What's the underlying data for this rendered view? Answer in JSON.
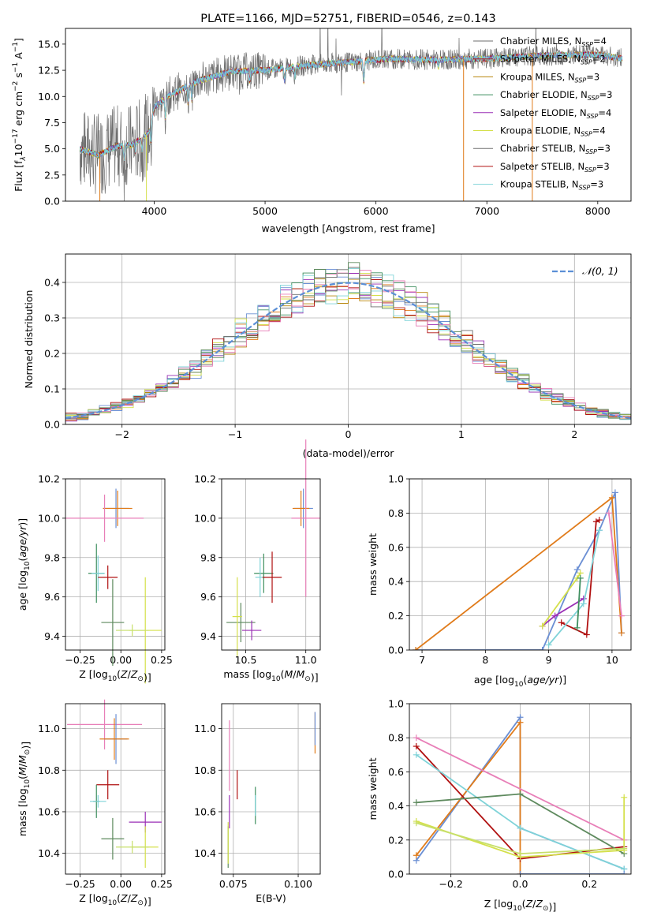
{
  "colors": {
    "chabrier_miles": "#6b8fd4",
    "salpeter_miles": "#e07b1a",
    "kroupa_miles": "#b8860b",
    "chabrier_elodie": "#3f8f5f",
    "salpeter_elodie": "#9a2fb5",
    "kroupa_elodie": "#d4e04a",
    "chabrier_stelib": "#6e6e6e",
    "salpeter_stelib": "#b01010",
    "kroupa_stelib": "#7fd3d8",
    "pink": "#e87fb8",
    "sage": "#5e8a5e",
    "lime": "#c7df6a",
    "normal": "#5b8fd6"
  },
  "chart_data": [
    {
      "id": "spectrum",
      "type": "line",
      "title": "PLATE=1166, MJD=52751, FIBERID=0546, z=0.143",
      "xlabel": "wavelength [Angstrom, rest frame]",
      "ylabel": "Flux [f",
      "xlim": [
        3200,
        8300
      ],
      "ylim": [
        0,
        16.5
      ],
      "xticks": [
        "4000",
        "5000",
        "6000",
        "7000",
        "8000"
      ],
      "xtick_values": [
        4000,
        5000,
        6000,
        7000,
        8000
      ],
      "yticks": [
        "0.0",
        "2.5",
        "5.0",
        "7.5",
        "10.0",
        "12.5",
        "15.0"
      ],
      "ytick_values": [
        0,
        2.5,
        5,
        7.5,
        10,
        12.5,
        15
      ],
      "grid": false,
      "legend_position": "top-right",
      "legend": [
        {
          "name": "Chabrier MILES, N",
          "sub": "SSP",
          "suffix": "=4"
        },
        {
          "name": "Salpeter MILES, N",
          "sub": "SSP",
          "suffix": "=2"
        },
        {
          "name": "Kroupa MILES, N",
          "sub": "SSP",
          "suffix": "=3"
        },
        {
          "name": "Chabrier ELODIE, N",
          "sub": "SSP",
          "suffix": "=3"
        },
        {
          "name": "Salpeter ELODIE, N",
          "sub": "SSP",
          "suffix": "=4"
        },
        {
          "name": "Kroupa ELODIE, N",
          "sub": "SSP",
          "suffix": "=4"
        },
        {
          "name": "Chabrier STELIB, N",
          "sub": "SSP",
          "suffix": "=3"
        },
        {
          "name": "Salpeter STELIB, N",
          "sub": "SSP",
          "suffix": "=3"
        },
        {
          "name": "Kroupa STELIB, N",
          "sub": "SSP",
          "suffix": "=3"
        }
      ],
      "continuum_nodes": [
        [
          3330,
          5.0
        ],
        [
          3500,
          4.4
        ],
        [
          3650,
          5.2
        ],
        [
          3800,
          5.4
        ],
        [
          3950,
          6.5
        ],
        [
          4000,
          9.0
        ],
        [
          4150,
          10.2
        ],
        [
          4400,
          11.5
        ],
        [
          4700,
          12.4
        ],
        [
          5000,
          12.5
        ],
        [
          5400,
          13.0
        ],
        [
          5800,
          13.3
        ],
        [
          6100,
          13.6
        ],
        [
          6500,
          13.5
        ],
        [
          7000,
          13.6
        ],
        [
          7500,
          13.9
        ],
        [
          8000,
          14.0
        ],
        [
          8220,
          13.6
        ]
      ]
    },
    {
      "id": "residuals",
      "type": "histogram",
      "xlabel": "(data-model)/error",
      "ylabel": "Normed distribution",
      "xlim": [
        -2.5,
        2.5
      ],
      "ylim": [
        0,
        0.48
      ],
      "xticks": [
        "−2",
        "−1",
        "0",
        "1",
        "2"
      ],
      "xtick_values": [
        -2,
        -1,
        0,
        1,
        2
      ],
      "yticks": [
        "0.0",
        "0.1",
        "0.2",
        "0.3",
        "0.4"
      ],
      "ytick_values": [
        0,
        0.1,
        0.2,
        0.3,
        0.4
      ],
      "grid": true,
      "legend_position": "top-right",
      "legend": [
        {
          "name": "𝒩(0, 1)"
        }
      ]
    },
    {
      "id": "age-vs-z",
      "type": "errorbar",
      "xlabel": "Z [log",
      "ylabel": "age  [log",
      "xlim": [
        -0.34,
        0.27
      ],
      "ylim": [
        9.33,
        10.2
      ],
      "xticks": [
        "−0.25",
        "0.00",
        "0.25"
      ],
      "xtick_values": [
        -0.25,
        0,
        0.25
      ],
      "yticks": [
        "9.4",
        "9.6",
        "9.8",
        "10.0",
        "10.2"
      ],
      "ytick_values": [
        9.4,
        9.6,
        9.8,
        10.0,
        10.2
      ],
      "grid": true,
      "points": [
        {
          "c": "chabrier_miles",
          "x": -0.03,
          "y": 10.05,
          "xe": 0.08,
          "ye": 0.1
        },
        {
          "c": "salpeter_miles",
          "x": -0.02,
          "y": 10.05,
          "xe": 0.09,
          "ye": 0.09
        },
        {
          "c": "pink",
          "x": -0.1,
          "y": 10.0,
          "xe": 0.24,
          "ye": 0.12
        },
        {
          "c": "chabrier_elodie",
          "x": -0.15,
          "y": 9.72,
          "xe": 0.05,
          "ye": 0.15
        },
        {
          "c": "kroupa_stelib",
          "x": -0.14,
          "y": 9.72,
          "xe": 0.04,
          "ye": 0.09
        },
        {
          "c": "salpeter_stelib",
          "x": -0.08,
          "y": 9.7,
          "xe": 0.06,
          "ye": 0.06
        },
        {
          "c": "sage",
          "x": -0.05,
          "y": 9.47,
          "xe": 0.07,
          "ye": 0.22
        },
        {
          "c": "kroupa_elodie",
          "x": 0.15,
          "y": 9.43,
          "xe": 0.1,
          "ye": 0.27
        },
        {
          "c": "lime",
          "x": 0.07,
          "y": 9.43,
          "xe": 0.1,
          "ye": 0.03
        }
      ]
    },
    {
      "id": "age-vs-mass",
      "type": "errorbar",
      "xlabel": "mass [log",
      "xlim": [
        10.3,
        11.12
      ],
      "ylim": [
        9.33,
        10.2
      ],
      "xticks": [
        "10.5",
        "11.0"
      ],
      "xtick_values": [
        10.5,
        11.0
      ],
      "yticks": [
        "9.4",
        "9.6",
        "9.8",
        "10.0",
        "10.2"
      ],
      "ytick_values": [
        9.4,
        9.6,
        9.8,
        10.0,
        10.2
      ],
      "grid": true,
      "points": [
        {
          "c": "chabrier_miles",
          "x": 10.98,
          "y": 10.05,
          "xe": 0.08,
          "ye": 0.1
        },
        {
          "c": "salpeter_miles",
          "x": 10.96,
          "y": 10.05,
          "xe": 0.07,
          "ye": 0.09
        },
        {
          "c": "pink",
          "x": 11.0,
          "y": 10.0,
          "xe": 0.12,
          "ye": 0.4
        },
        {
          "c": "chabrier_elodie",
          "x": 10.65,
          "y": 9.72,
          "xe": 0.08,
          "ye": 0.1
        },
        {
          "c": "kroupa_stelib",
          "x": 10.62,
          "y": 9.7,
          "xe": 0.04,
          "ye": 0.1
        },
        {
          "c": "salpeter_stelib",
          "x": 10.72,
          "y": 9.7,
          "xe": 0.08,
          "ye": 0.13
        },
        {
          "c": "sage",
          "x": 10.46,
          "y": 9.47,
          "xe": 0.12,
          "ye": 0.1
        },
        {
          "c": "salpeter_elodie",
          "x": 10.55,
          "y": 9.43,
          "xe": 0.08,
          "ye": 0.05
        },
        {
          "c": "kroupa_elodie",
          "x": 10.43,
          "y": 9.5,
          "xe": 0.04,
          "ye": 0.2
        }
      ]
    },
    {
      "id": "weight-vs-age",
      "type": "line",
      "xlabel": "age  [log",
      "ylabel": "mass weight",
      "xlim": [
        6.8,
        10.3
      ],
      "ylim": [
        0,
        1.0
      ],
      "xticks": [
        "7",
        "8",
        "9",
        "10"
      ],
      "xtick_values": [
        7,
        8,
        9,
        10
      ],
      "yticks": [
        "0.0",
        "0.2",
        "0.4",
        "0.6",
        "0.8",
        "1.0"
      ],
      "ytick_values": [
        0,
        0.2,
        0.4,
        0.6,
        0.8,
        1.0
      ],
      "grid": true,
      "series": [
        {
          "c": "chabrier_miles",
          "x": [
            6.9,
            8.9,
            9.45,
            9.8,
            10.05,
            10.15
          ],
          "y": [
            0.0,
            0.0,
            0.47,
            0.7,
            0.92,
            0.1
          ]
        },
        {
          "c": "salpeter_miles",
          "x": [
            6.9,
            10.0,
            10.15
          ],
          "y": [
            0.0,
            0.89,
            0.1
          ]
        },
        {
          "c": "salpeter_elodie",
          "x": [
            8.9,
            9.1,
            9.55
          ],
          "y": [
            0.14,
            0.2,
            0.3
          ]
        },
        {
          "c": "kroupa_elodie",
          "x": [
            8.9,
            9.45,
            9.5
          ],
          "y": [
            0.14,
            0.42,
            0.45
          ]
        },
        {
          "c": "salpeter_stelib",
          "x": [
            9.2,
            9.6,
            9.75,
            9.8
          ],
          "y": [
            0.16,
            0.09,
            0.75,
            0.76
          ]
        },
        {
          "c": "pink",
          "x": [
            9.95,
            10.15
          ],
          "y": [
            0.8,
            0.2
          ]
        },
        {
          "c": "kroupa_stelib",
          "x": [
            9.0,
            9.55,
            9.8
          ],
          "y": [
            0.03,
            0.27,
            0.7
          ]
        },
        {
          "c": "chabrier_elodie",
          "x": [
            9.45,
            9.5
          ],
          "y": [
            0.13,
            0.42
          ]
        }
      ]
    },
    {
      "id": "mass-vs-z",
      "type": "errorbar",
      "xlabel": "Z [log",
      "ylabel": "mass [log",
      "xlim": [
        -0.34,
        0.27
      ],
      "ylim": [
        10.3,
        11.12
      ],
      "xticks": [
        "−0.25",
        "0.00",
        "0.25"
      ],
      "xtick_values": [
        -0.25,
        0,
        0.25
      ],
      "yticks": [
        "10.4",
        "10.6",
        "10.8",
        "11.0"
      ],
      "ytick_values": [
        10.4,
        10.6,
        10.8,
        11.0
      ],
      "grid": true,
      "points": [
        {
          "c": "pink",
          "x": -0.1,
          "y": 11.02,
          "xe": 0.23,
          "ye": 0.12
        },
        {
          "c": "chabrier_miles",
          "x": -0.03,
          "y": 10.95,
          "xe": 0.07,
          "ye": 0.12
        },
        {
          "c": "salpeter_miles",
          "x": -0.04,
          "y": 10.95,
          "xe": 0.09,
          "ye": 0.1
        },
        {
          "c": "salpeter_stelib",
          "x": -0.08,
          "y": 10.73,
          "xe": 0.07,
          "ye": 0.07
        },
        {
          "c": "chabrier_elodie",
          "x": -0.15,
          "y": 10.65,
          "xe": 0.02,
          "ye": 0.08
        },
        {
          "c": "kroupa_stelib",
          "x": -0.14,
          "y": 10.65,
          "xe": 0.05,
          "ye": 0.03
        },
        {
          "c": "salpeter_elodie",
          "x": 0.15,
          "y": 10.55,
          "xe": 0.1,
          "ye": 0.05
        },
        {
          "c": "sage",
          "x": -0.05,
          "y": 10.47,
          "xe": 0.07,
          "ye": 0.1
        },
        {
          "c": "kroupa_elodie",
          "x": 0.15,
          "y": 10.43,
          "xe": 0.08,
          "ye": 0.1
        },
        {
          "c": "lime",
          "x": 0.07,
          "y": 10.43,
          "xe": 0.1,
          "ye": 0.03
        }
      ]
    },
    {
      "id": "mass-vs-ebv",
      "type": "errorbar",
      "xlabel": "E(B-V)",
      "xlim": [
        0.0705,
        0.1085
      ],
      "ylim": [
        10.3,
        11.12
      ],
      "xticks": [
        "0.075",
        "0.100"
      ],
      "xtick_values": [
        0.075,
        0.1
      ],
      "yticks": [
        "10.4",
        "10.6",
        "10.8",
        "11.0"
      ],
      "ytick_values": [
        10.4,
        10.6,
        10.8,
        11.0
      ],
      "grid": true,
      "points": [
        {
          "c": "pink",
          "x": 0.0735,
          "y": 10.87,
          "xe": 0,
          "ye": 0.17
        },
        {
          "c": "salpeter_miles",
          "x": 0.1065,
          "y": 10.98,
          "xe": 0,
          "ye": 0.1
        },
        {
          "c": "chabrier_miles",
          "x": 0.1065,
          "y": 11.0,
          "xe": 0,
          "ye": 0.08
        },
        {
          "c": "salpeter_stelib",
          "x": 0.0765,
          "y": 10.73,
          "xe": 0,
          "ye": 0.07
        },
        {
          "c": "chabrier_elodie",
          "x": 0.0835,
          "y": 10.63,
          "xe": 0,
          "ye": 0.09
        },
        {
          "c": "kroupa_stelib",
          "x": 0.0835,
          "y": 10.63,
          "xe": 0,
          "ye": 0.05
        },
        {
          "c": "salpeter_elodie",
          "x": 0.0735,
          "y": 10.6,
          "xe": 0,
          "ye": 0.08
        },
        {
          "c": "sage",
          "x": 0.073,
          "y": 10.43,
          "xe": 0,
          "ye": 0.1
        },
        {
          "c": "kroupa_elodie",
          "x": 0.073,
          "y": 10.45,
          "xe": 0,
          "ye": 0.1
        }
      ]
    },
    {
      "id": "weight-vs-z",
      "type": "line",
      "xlabel": "Z [log",
      "ylabel": "mass weight",
      "xlim": [
        -0.32,
        0.32
      ],
      "ylim": [
        0,
        1.0
      ],
      "xticks": [
        "−0.2",
        "0.0",
        "0.2"
      ],
      "xtick_values": [
        -0.2,
        0,
        0.2
      ],
      "yticks": [
        "0.0",
        "0.2",
        "0.4",
        "0.6",
        "0.8",
        "1.0"
      ],
      "ytick_values": [
        0,
        0.2,
        0.4,
        0.6,
        0.8,
        1.0
      ],
      "grid": true,
      "series": [
        {
          "c": "chabrier_miles",
          "x": [
            -0.3,
            0,
            0,
            0.3
          ],
          "y": [
            0.08,
            0.92,
            0.27,
            0.03
          ]
        },
        {
          "c": "salpeter_miles",
          "x": [
            -0.3,
            0,
            0
          ],
          "y": [
            0.11,
            0.89,
            0.0
          ]
        },
        {
          "c": "pink",
          "x": [
            -0.3,
            0.3
          ],
          "y": [
            0.8,
            0.2
          ]
        },
        {
          "c": "salpeter_stelib",
          "x": [
            -0.3,
            0,
            0.3
          ],
          "y": [
            0.75,
            0.09,
            0.16
          ]
        },
        {
          "c": "kroupa_stelib",
          "x": [
            -0.3,
            0,
            0.3
          ],
          "y": [
            0.7,
            0.27,
            0.03
          ]
        },
        {
          "c": "sage",
          "x": [
            -0.3,
            0,
            0.3
          ],
          "y": [
            0.42,
            0.47,
            0.12
          ]
        },
        {
          "c": "kroupa_elodie",
          "x": [
            -0.3,
            0,
            0.3,
            0.3
          ],
          "y": [
            0.31,
            0.1,
            0.14,
            0.45
          ]
        },
        {
          "c": "lime",
          "x": [
            -0.3,
            0,
            0.3
          ],
          "y": [
            0.3,
            0.12,
            0.15
          ]
        },
        {
          "c": "chabrier_miles",
          "x": [
            0,
            0.3
          ],
          "y": [
            0.0,
            0.0
          ]
        }
      ]
    }
  ]
}
